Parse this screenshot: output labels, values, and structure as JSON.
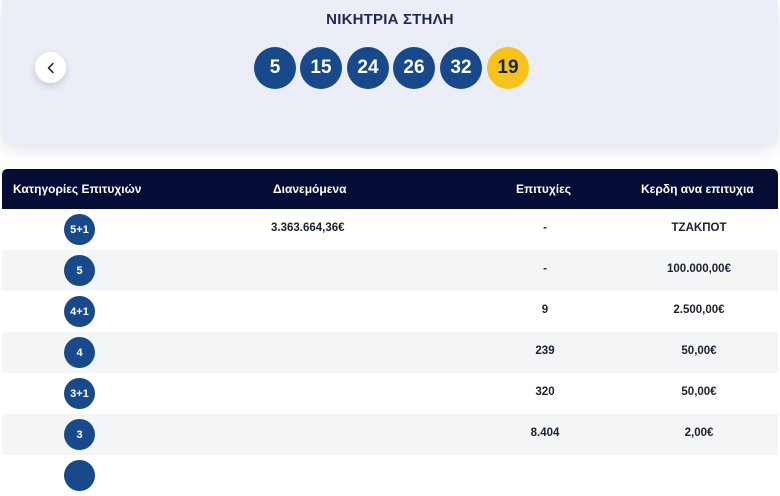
{
  "header": {
    "title": "ΝΙΚΗΤΡΙΑ ΣΤΗΛΗ",
    "winning_numbers": [
      "5",
      "15",
      "24",
      "26",
      "32"
    ],
    "joker_number": "19"
  },
  "table": {
    "columns": {
      "category": "Κατηγορίες Επιτυχιών",
      "distributed": "Διανεμόμενα",
      "winners": "Επιτυχίες",
      "prize": "Κερδη ανα επιτυχια"
    },
    "rows": [
      {
        "category": "5+1",
        "distributed": "3.363.664,36€",
        "winners": "-",
        "prize": "ΤΖΑΚΠΟΤ"
      },
      {
        "category": "5",
        "distributed": "",
        "winners": "-",
        "prize": "100.000,00€"
      },
      {
        "category": "4+1",
        "distributed": "",
        "winners": "9",
        "prize": "2.500,00€"
      },
      {
        "category": "4",
        "distributed": "",
        "winners": "239",
        "prize": "50,00€"
      },
      {
        "category": "3+1",
        "distributed": "",
        "winners": "320",
        "prize": "50,00€"
      },
      {
        "category": "3",
        "distributed": "",
        "winners": "8.404",
        "prize": "2,00€"
      }
    ]
  },
  "colors": {
    "ball_blue": "#17498b",
    "joker_yellow": "#f7c21a",
    "table_header": "#050c36"
  }
}
